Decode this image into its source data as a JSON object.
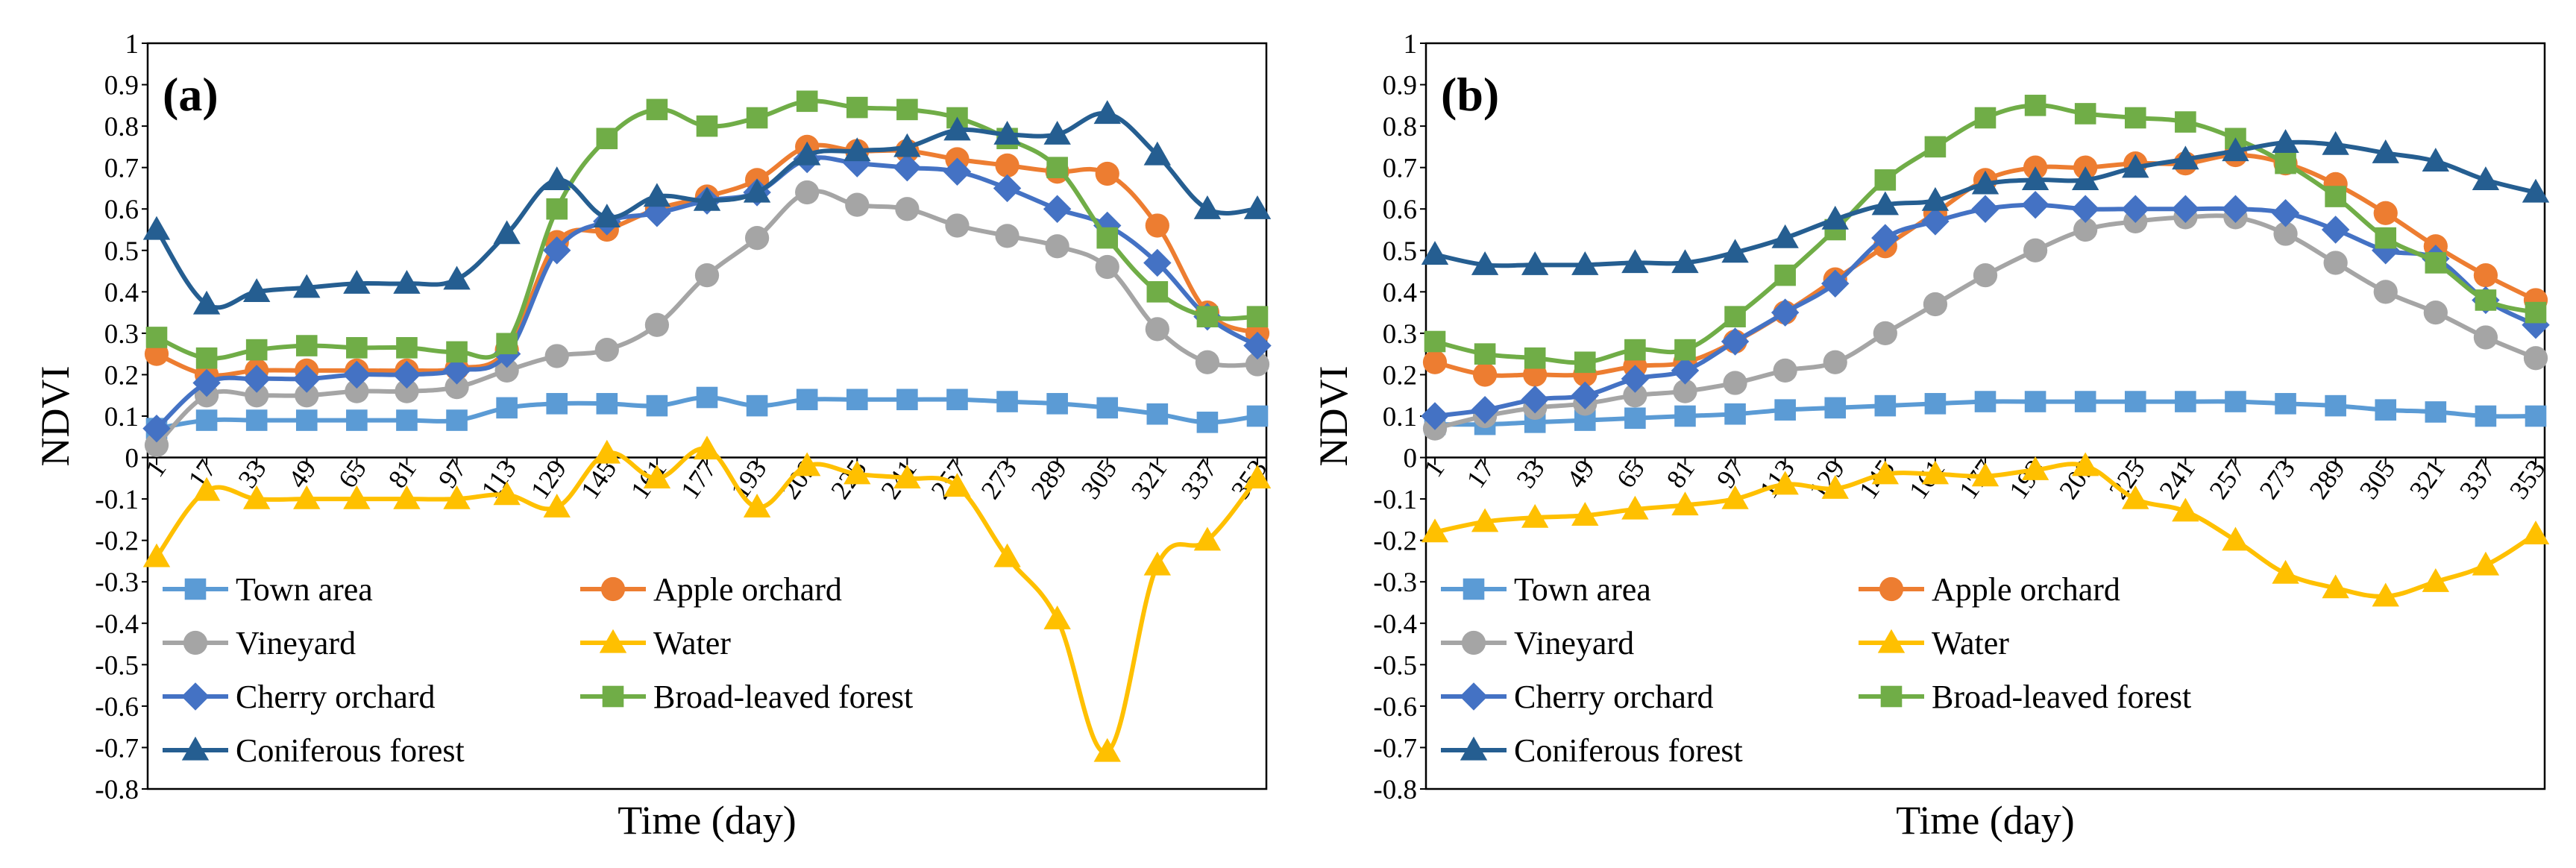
{
  "chart_data": [
    {
      "type": "line",
      "panel_label": "(a)",
      "title": "",
      "xlabel": "Time (day)",
      "ylabel": "NDVI",
      "ylim": [
        -0.8,
        1
      ],
      "yticks": [
        1,
        0.9,
        0.8,
        0.7,
        0.6,
        0.5,
        0.4,
        0.3,
        0.2,
        0.1,
        0,
        -0.1,
        -0.2,
        -0.3,
        -0.4,
        -0.5,
        -0.6,
        -0.7,
        -0.8
      ],
      "ytick_labels": [
        "1",
        "0.9",
        "0.8",
        "0.7",
        "0.6",
        "0.5",
        "0.4",
        "0.3",
        "0.2",
        "0.1",
        "0",
        "-0.1",
        "-0.2",
        "-0.3",
        "-0.4",
        "-0.5",
        "-0.6",
        "-0.7",
        "-0.8"
      ],
      "categories": [
        "1",
        "17",
        "33",
        "49",
        "65",
        "81",
        "97",
        "113",
        "129",
        "145",
        "161",
        "177",
        "193",
        "209",
        "225",
        "241",
        "257",
        "273",
        "289",
        "305",
        "321",
        "337",
        "353"
      ],
      "legend_position": "lower-left",
      "series": [
        {
          "name": "Town area",
          "color": "#5B9BD5",
          "marker": "square",
          "values": [
            0.07,
            0.09,
            0.09,
            0.09,
            0.09,
            0.09,
            0.09,
            0.12,
            0.13,
            0.13,
            0.125,
            0.145,
            0.125,
            0.14,
            0.14,
            0.14,
            0.14,
            0.135,
            0.13,
            0.12,
            0.105,
            0.085,
            0.1
          ]
        },
        {
          "name": "Apple orchard",
          "color": "#ED7D31",
          "marker": "circle",
          "values": [
            0.25,
            0.2,
            0.21,
            0.21,
            0.21,
            0.21,
            0.215,
            0.26,
            0.52,
            0.55,
            0.6,
            0.63,
            0.67,
            0.75,
            0.74,
            0.74,
            0.72,
            0.705,
            0.69,
            0.685,
            0.56,
            0.35,
            0.3
          ]
        },
        {
          "name": "Vineyard",
          "color": "#A5A5A5",
          "marker": "circle",
          "values": [
            0.03,
            0.15,
            0.15,
            0.15,
            0.16,
            0.16,
            0.17,
            0.21,
            0.245,
            0.26,
            0.32,
            0.44,
            0.53,
            0.64,
            0.61,
            0.6,
            0.56,
            0.535,
            0.51,
            0.46,
            0.31,
            0.23,
            0.225
          ]
        },
        {
          "name": "Water",
          "color": "#FFC000",
          "marker": "triangle",
          "values": [
            -0.24,
            -0.08,
            -0.1,
            -0.1,
            -0.1,
            -0.1,
            -0.1,
            -0.09,
            -0.12,
            0.01,
            -0.05,
            0.02,
            -0.12,
            -0.02,
            -0.04,
            -0.05,
            -0.07,
            -0.24,
            -0.39,
            -0.71,
            -0.26,
            -0.2,
            -0.05
          ]
        },
        {
          "name": "Cherry orchard",
          "color": "#4472C4",
          "marker": "diamond",
          "values": [
            0.07,
            0.18,
            0.19,
            0.19,
            0.2,
            0.2,
            0.21,
            0.25,
            0.5,
            0.57,
            0.59,
            0.62,
            0.64,
            0.72,
            0.71,
            0.7,
            0.69,
            0.65,
            0.6,
            0.56,
            0.47,
            0.34,
            0.27
          ]
        },
        {
          "name": "Broad-leaved forest",
          "color": "#70AD47",
          "marker": "square",
          "values": [
            0.29,
            0.24,
            0.26,
            0.27,
            0.265,
            0.265,
            0.255,
            0.275,
            0.6,
            0.77,
            0.84,
            0.8,
            0.82,
            0.86,
            0.845,
            0.84,
            0.82,
            0.77,
            0.7,
            0.53,
            0.4,
            0.34,
            0.34
          ]
        },
        {
          "name": "Coniferous forest",
          "color": "#255E91",
          "marker": "triangle",
          "values": [
            0.55,
            0.37,
            0.4,
            0.41,
            0.42,
            0.42,
            0.43,
            0.54,
            0.67,
            0.58,
            0.63,
            0.62,
            0.64,
            0.73,
            0.74,
            0.75,
            0.79,
            0.78,
            0.78,
            0.83,
            0.73,
            0.6,
            0.6
          ]
        }
      ]
    },
    {
      "type": "line",
      "panel_label": "(b)",
      "title": "",
      "xlabel": "Time (day)",
      "ylabel": "NDVI",
      "ylim": [
        -0.8,
        1
      ],
      "yticks": [
        1,
        0.9,
        0.8,
        0.7,
        0.6,
        0.5,
        0.4,
        0.3,
        0.2,
        0.1,
        0,
        -0.1,
        -0.2,
        -0.3,
        -0.4,
        -0.5,
        -0.6,
        -0.7,
        -0.8
      ],
      "ytick_labels": [
        "1",
        "0.9",
        "0.8",
        "0.7",
        "0.6",
        "0.5",
        "0.4",
        "0.3",
        "0.2",
        "0.1",
        "0",
        "-0.1",
        "-0.2",
        "-0.3",
        "-0.4",
        "-0.5",
        "-0.6",
        "-0.7",
        "-0.8"
      ],
      "categories": [
        "1",
        "17",
        "33",
        "49",
        "65",
        "81",
        "97",
        "113",
        "129",
        "145",
        "161",
        "177",
        "193",
        "209",
        "225",
        "241",
        "257",
        "273",
        "289",
        "305",
        "321",
        "337",
        "353"
      ],
      "legend_position": "lower-left",
      "series": [
        {
          "name": "Town area",
          "color": "#5B9BD5",
          "marker": "square",
          "values": [
            0.08,
            0.08,
            0.085,
            0.09,
            0.095,
            0.1,
            0.105,
            0.115,
            0.12,
            0.125,
            0.13,
            0.135,
            0.135,
            0.135,
            0.135,
            0.135,
            0.135,
            0.13,
            0.125,
            0.115,
            0.11,
            0.1,
            0.1
          ]
        },
        {
          "name": "Apple orchard",
          "color": "#ED7D31",
          "marker": "circle",
          "values": [
            0.23,
            0.2,
            0.2,
            0.2,
            0.22,
            0.23,
            0.28,
            0.35,
            0.43,
            0.51,
            0.59,
            0.67,
            0.7,
            0.7,
            0.71,
            0.71,
            0.73,
            0.71,
            0.66,
            0.59,
            0.51,
            0.44,
            0.38
          ]
        },
        {
          "name": "Vineyard",
          "color": "#A5A5A5",
          "marker": "circle",
          "values": [
            0.07,
            0.1,
            0.12,
            0.13,
            0.15,
            0.16,
            0.18,
            0.21,
            0.23,
            0.3,
            0.37,
            0.44,
            0.5,
            0.55,
            0.57,
            0.58,
            0.58,
            0.54,
            0.47,
            0.4,
            0.35,
            0.29,
            0.24
          ]
        },
        {
          "name": "Water",
          "color": "#FFC000",
          "marker": "triangle",
          "values": [
            -0.18,
            -0.155,
            -0.145,
            -0.14,
            -0.125,
            -0.115,
            -0.1,
            -0.065,
            -0.075,
            -0.04,
            -0.04,
            -0.045,
            -0.03,
            -0.02,
            -0.1,
            -0.13,
            -0.2,
            -0.28,
            -0.315,
            -0.335,
            -0.3,
            -0.26,
            -0.185
          ]
        },
        {
          "name": "Cherry orchard",
          "color": "#4472C4",
          "marker": "diamond",
          "values": [
            0.1,
            0.115,
            0.14,
            0.15,
            0.19,
            0.21,
            0.28,
            0.35,
            0.42,
            0.53,
            0.57,
            0.6,
            0.61,
            0.6,
            0.6,
            0.6,
            0.6,
            0.59,
            0.55,
            0.5,
            0.48,
            0.38,
            0.32
          ]
        },
        {
          "name": "Broad-leaved forest",
          "color": "#70AD47",
          "marker": "square",
          "values": [
            0.28,
            0.25,
            0.24,
            0.23,
            0.26,
            0.26,
            0.34,
            0.44,
            0.55,
            0.67,
            0.75,
            0.82,
            0.85,
            0.83,
            0.82,
            0.81,
            0.77,
            0.71,
            0.63,
            0.53,
            0.47,
            0.38,
            0.35
          ]
        },
        {
          "name": "Coniferous forest",
          "color": "#255E91",
          "marker": "triangle",
          "values": [
            0.49,
            0.465,
            0.465,
            0.465,
            0.47,
            0.47,
            0.495,
            0.53,
            0.575,
            0.61,
            0.62,
            0.66,
            0.67,
            0.67,
            0.7,
            0.72,
            0.74,
            0.76,
            0.755,
            0.735,
            0.715,
            0.67,
            0.64
          ]
        }
      ]
    }
  ]
}
